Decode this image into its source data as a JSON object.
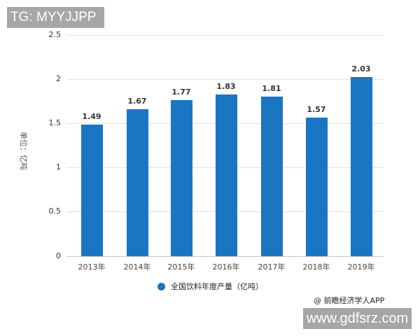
{
  "overlays": {
    "top_left_banner": "TG: MYYJJPP",
    "bottom_right_banner": "www.gdfsrz.com",
    "source_credit": "@ 前瞻经济学人APP"
  },
  "colors": {
    "bar": "#1a75c2",
    "grid": "#e3e3e3",
    "banner_bg": "#a6a6a6"
  },
  "chart_data": {
    "type": "bar",
    "title": "",
    "categories": [
      "2013年",
      "2014年",
      "2015年",
      "2016年",
      "2017年",
      "2018年",
      "2019年"
    ],
    "values": [
      1.49,
      1.67,
      1.77,
      1.83,
      1.81,
      1.57,
      2.03
    ],
    "value_labels": [
      "1.49",
      "1.67",
      "1.77",
      "1.83",
      "1.81",
      "1.57",
      "2.03"
    ],
    "series": [
      {
        "name": "全国饮料年度产量（亿吨）",
        "values": [
          1.49,
          1.67,
          1.77,
          1.83,
          1.81,
          1.57,
          2.03
        ]
      }
    ],
    "xlabel": "",
    "ylabel": "单位：亿吨",
    "ylim": [
      0,
      2.5
    ],
    "yticks": [
      "0",
      "0.5",
      "1",
      "1.5",
      "2",
      "2.5"
    ],
    "grid": true,
    "legend_position": "bottom",
    "legend": [
      "全国饮料年度产量（亿吨）"
    ]
  }
}
